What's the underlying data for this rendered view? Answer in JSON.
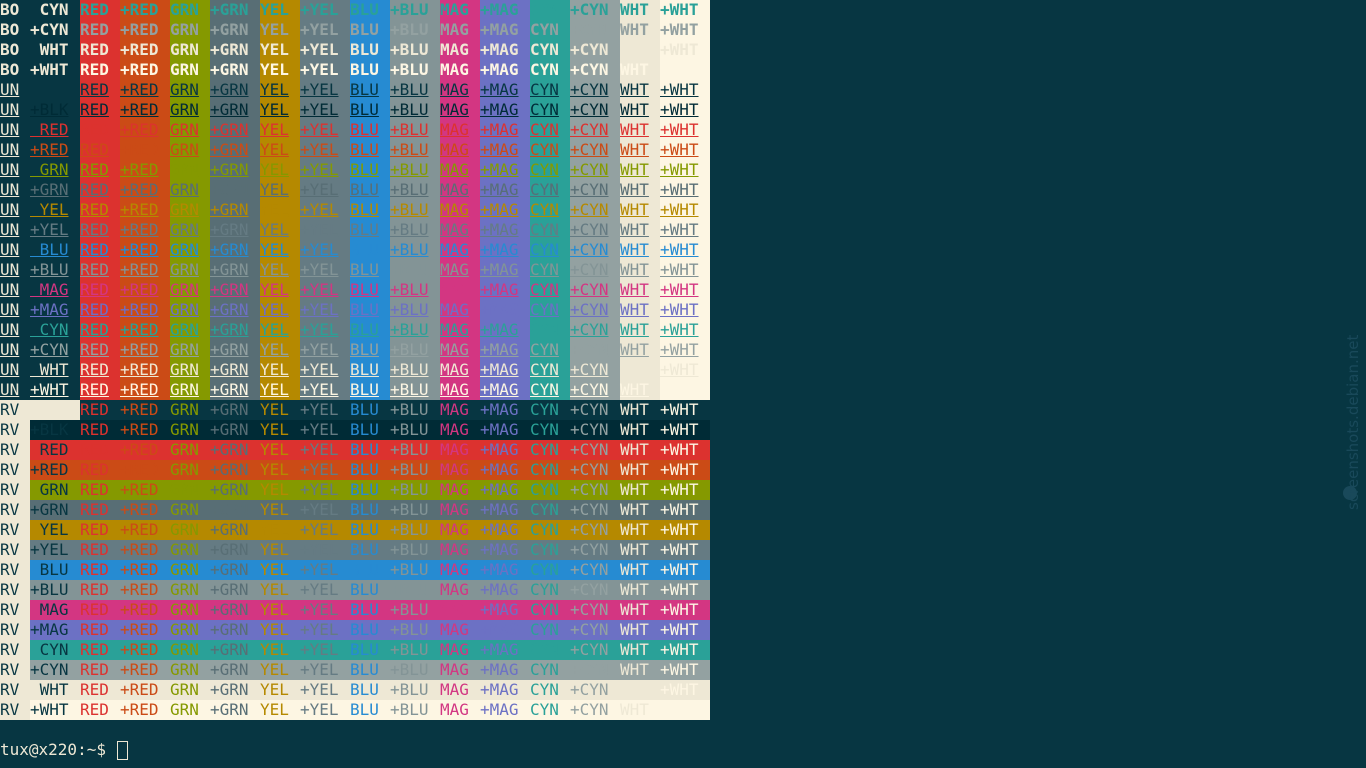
{
  "terminal": {
    "prompt": "tux@x220:~$ ",
    "watermark": "screenshots.debian.net"
  },
  "palette": {
    "BLK": "#073642",
    "+BLK": "#002b36",
    "RED": "#dc322f",
    "+RED": "#cb4b16",
    "GRN": "#859900",
    "+GRN": "#586e75",
    "YEL": "#b58900",
    "+YEL": "#657b83",
    "BLU": "#268bd2",
    "+BLU": "#839496",
    "MAG": "#d33682",
    "+MAG": "#6c71c4",
    "CYN": "#2aa198",
    "+CYN": "#93a1a1",
    "WHT": "#eee8d5",
    "+WHT": "#fdf6e3",
    "default_fg": "#eee8d5"
  },
  "columns": [
    "RED",
    "+RED",
    "GRN",
    "+GRN",
    "YEL",
    "+YEL",
    "BLU",
    "+BLU",
    "MAG",
    "+MAG",
    "CYN",
    "+CYN",
    "WHT",
    "+WHT"
  ],
  "rows": [
    {
      "mode": "BO",
      "label": "CYN"
    },
    {
      "mode": "BO",
      "label": "+CYN"
    },
    {
      "mode": "BO",
      "label": "WHT"
    },
    {
      "mode": "BO",
      "label": "+WHT"
    },
    {
      "mode": "UN",
      "label": ""
    },
    {
      "mode": "UN",
      "label": "+BLK"
    },
    {
      "mode": "UN",
      "label": "RED"
    },
    {
      "mode": "UN",
      "label": "+RED"
    },
    {
      "mode": "UN",
      "label": "GRN"
    },
    {
      "mode": "UN",
      "label": "+GRN"
    },
    {
      "mode": "UN",
      "label": "YEL"
    },
    {
      "mode": "UN",
      "label": "+YEL"
    },
    {
      "mode": "UN",
      "label": "BLU"
    },
    {
      "mode": "UN",
      "label": "+BLU"
    },
    {
      "mode": "UN",
      "label": "MAG"
    },
    {
      "mode": "UN",
      "label": "+MAG"
    },
    {
      "mode": "UN",
      "label": "CYN"
    },
    {
      "mode": "UN",
      "label": "+CYN"
    },
    {
      "mode": "UN",
      "label": "WHT"
    },
    {
      "mode": "UN",
      "label": "+WHT"
    },
    {
      "mode": "RV",
      "label": ""
    },
    {
      "mode": "RV",
      "label": "+BLK"
    },
    {
      "mode": "RV",
      "label": "RED"
    },
    {
      "mode": "RV",
      "label": "+RED"
    },
    {
      "mode": "RV",
      "label": "GRN"
    },
    {
      "mode": "RV",
      "label": "+GRN"
    },
    {
      "mode": "RV",
      "label": "YEL"
    },
    {
      "mode": "RV",
      "label": "+YEL"
    },
    {
      "mode": "RV",
      "label": "BLU"
    },
    {
      "mode": "RV",
      "label": "+BLU"
    },
    {
      "mode": "RV",
      "label": "MAG"
    },
    {
      "mode": "RV",
      "label": "+MAG"
    },
    {
      "mode": "RV",
      "label": "CYN"
    },
    {
      "mode": "RV",
      "label": "+CYN"
    },
    {
      "mode": "RV",
      "label": "WHT"
    },
    {
      "mode": "RV",
      "label": "+WHT"
    }
  ]
}
